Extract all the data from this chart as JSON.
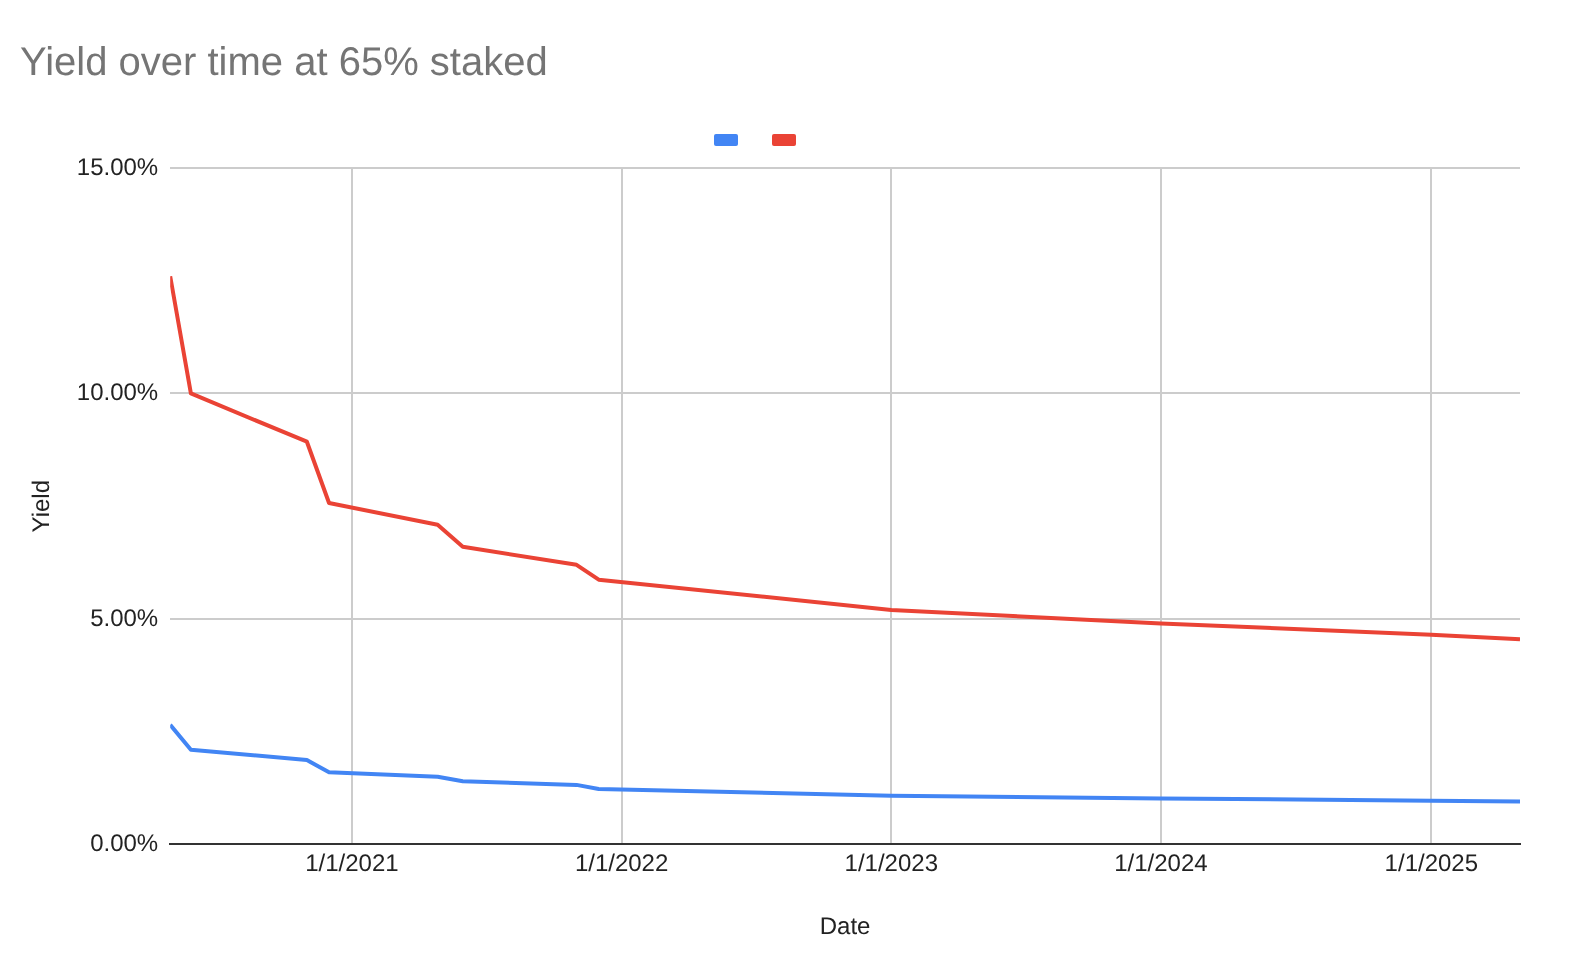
{
  "chart_data": {
    "type": "line",
    "title": "Yield over time at 65% staked",
    "xlabel": "Date",
    "ylabel": "Yield",
    "xlim": [
      "2020-04-30",
      "2025-05-01"
    ],
    "xticks": [
      {
        "value": "2021-01-01",
        "label": "1/1/2021"
      },
      {
        "value": "2022-01-01",
        "label": "1/1/2022"
      },
      {
        "value": "2023-01-01",
        "label": "1/1/2023"
      },
      {
        "value": "2024-01-01",
        "label": "1/1/2024"
      },
      {
        "value": "2025-01-01",
        "label": "1/1/2025"
      }
    ],
    "ylim": [
      0,
      15
    ],
    "yticks": [
      {
        "value": 0,
        "label": "0.00%"
      },
      {
        "value": 5,
        "label": "5.00%"
      },
      {
        "value": 10,
        "label": "10.00%"
      },
      {
        "value": 15,
        "label": "15.00%"
      }
    ],
    "x": [
      "2020-04-30",
      "2020-05-28",
      "2020-11-01",
      "2020-12-01",
      "2021-04-27",
      "2021-05-31",
      "2021-11-01",
      "2021-12-01",
      "2023-01-01",
      "2024-01-01",
      "2025-01-01",
      "2025-05-01"
    ],
    "series": [
      {
        "color": "#4285f4",
        "values": [
          2.65,
          2.1,
          1.87,
          1.6,
          1.5,
          1.4,
          1.32,
          1.23,
          1.08,
          1.02,
          0.97,
          0.95
        ]
      },
      {
        "color": "#ea4335",
        "values": [
          12.6,
          10.0,
          8.93,
          7.57,
          7.09,
          6.6,
          6.2,
          5.87,
          5.2,
          4.9,
          4.65,
          4.55
        ]
      }
    ],
    "grid": true,
    "marker": "none",
    "line_style": "solid"
  }
}
